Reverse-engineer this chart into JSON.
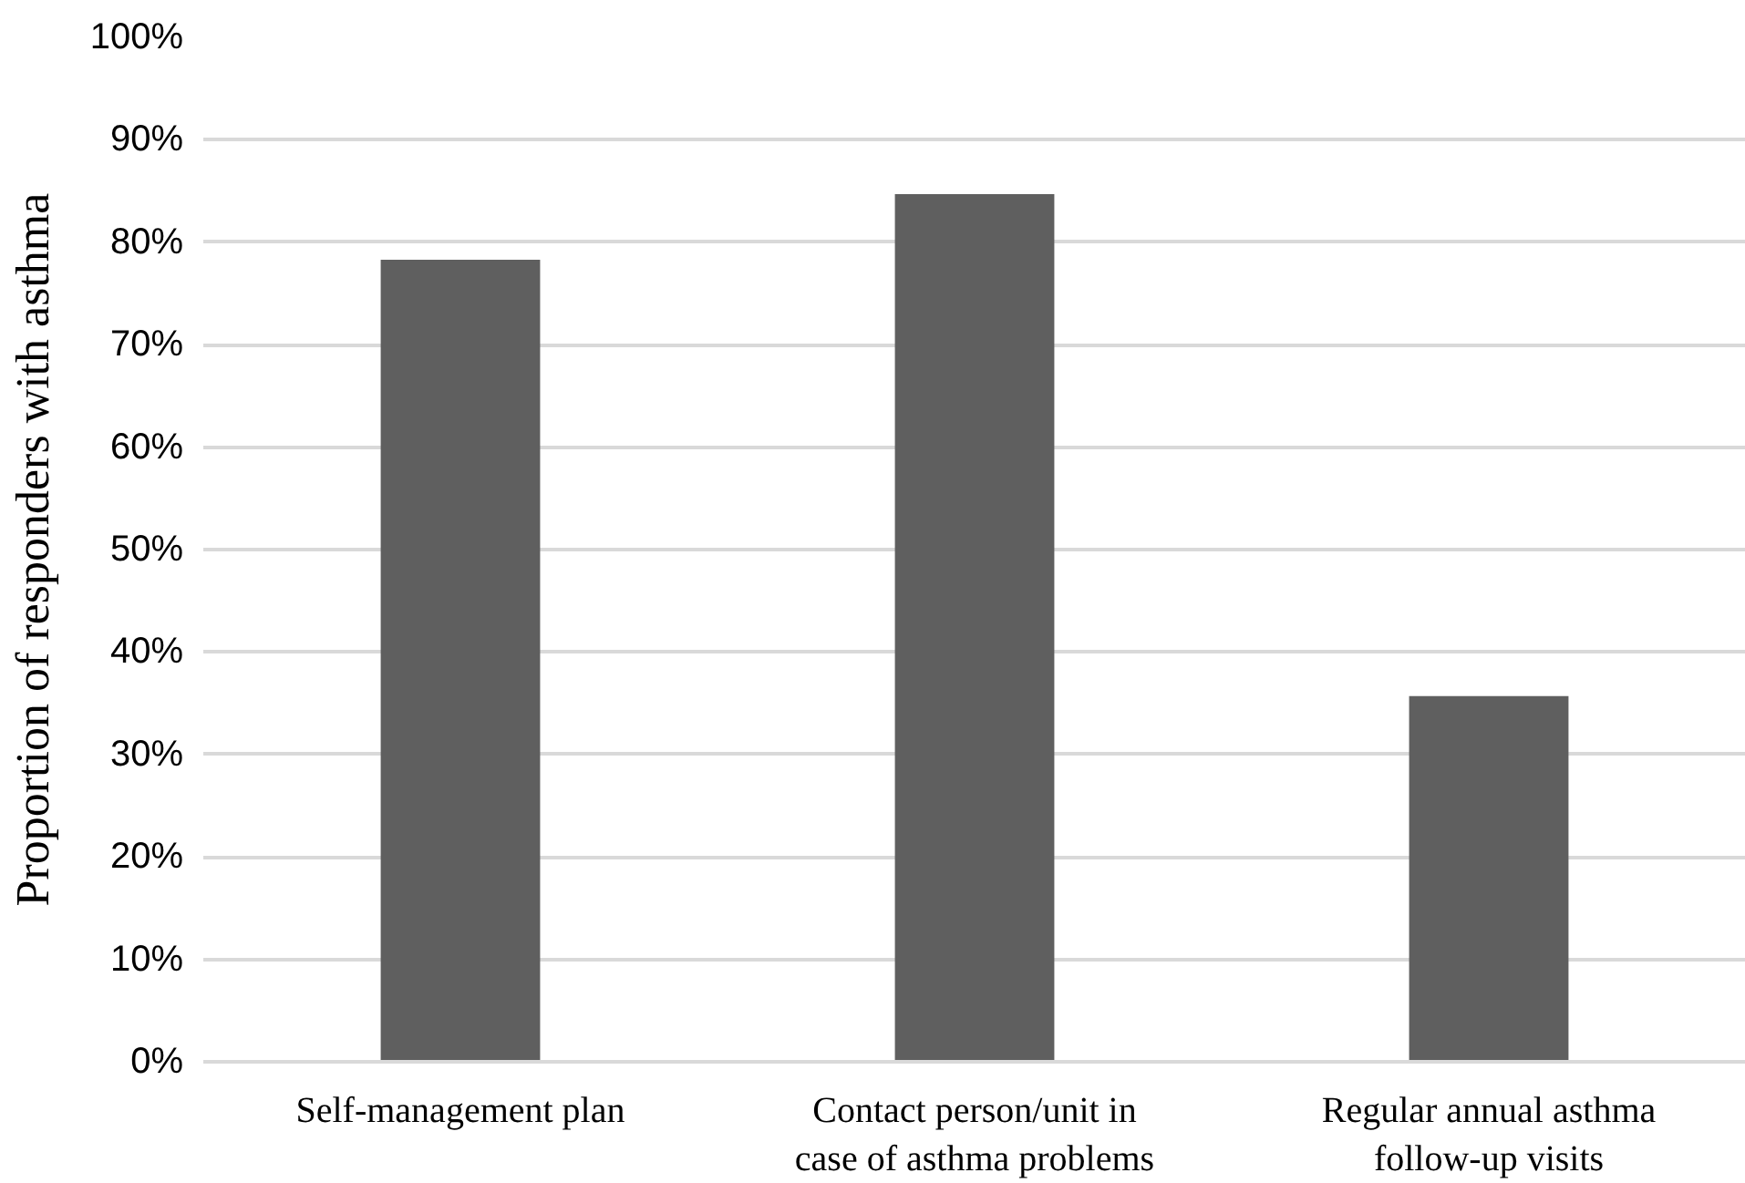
{
  "chart_data": {
    "type": "bar",
    "ylabel": "Proportion of responders with asthma",
    "categories": [
      "Self-management plan",
      "Contact person/unit in\ncase of asthma problems",
      "Regular annual asthma\nfollow-up visits"
    ],
    "values": [
      78.3,
      84.7,
      35.7
    ],
    "color": "#5f5f5f",
    "ylim": [
      0,
      100
    ],
    "yticks": [
      {
        "value": 0,
        "label": "0%"
      },
      {
        "value": 10,
        "label": "10%"
      },
      {
        "value": 20,
        "label": "20%"
      },
      {
        "value": 30,
        "label": "30%"
      },
      {
        "value": 40,
        "label": "40%"
      },
      {
        "value": 50,
        "label": "50%"
      },
      {
        "value": 60,
        "label": "60%"
      },
      {
        "value": 70,
        "label": "70%"
      },
      {
        "value": 80,
        "label": "80%"
      },
      {
        "value": 90,
        "label": "90%"
      },
      {
        "value": 100,
        "label": "100%"
      }
    ],
    "grid": "y"
  }
}
